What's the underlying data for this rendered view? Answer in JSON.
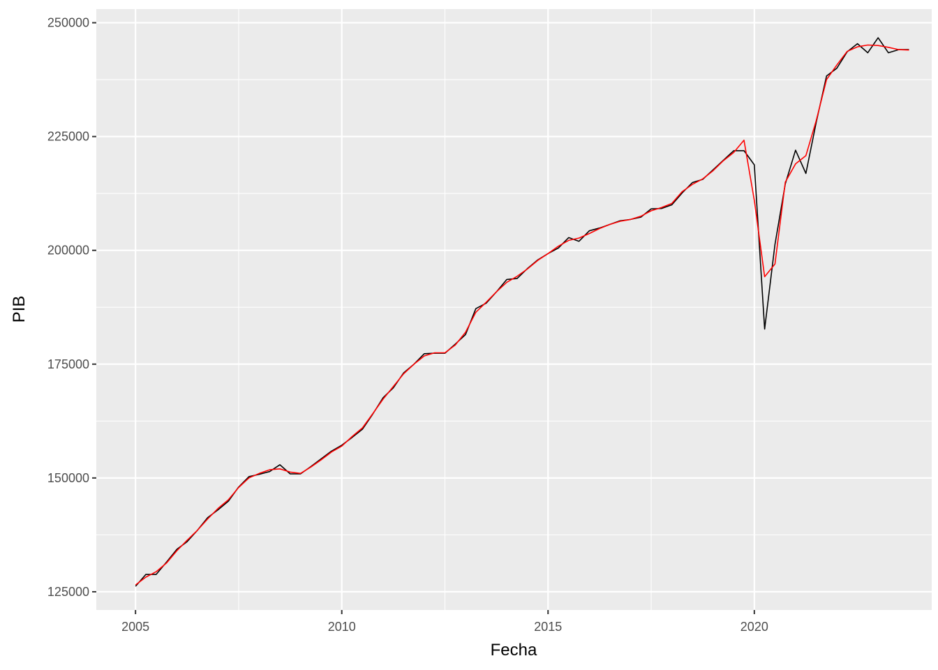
{
  "chart_data": {
    "type": "line",
    "title": "",
    "xlabel": "Fecha",
    "ylabel": "PIB",
    "xlim": [
      2004.05,
      2024.3
    ],
    "ylim": [
      121000,
      253000
    ],
    "x_ticks": [
      2005,
      2010,
      2015,
      2020
    ],
    "x_tick_labels": [
      "2005",
      "2010",
      "2015",
      "2020"
    ],
    "y_ticks": [
      125000,
      150000,
      175000,
      200000,
      225000,
      250000
    ],
    "y_tick_labels": [
      "125000",
      "150000",
      "175000",
      "200000",
      "225000",
      "250000"
    ],
    "grid": true,
    "legend": "none",
    "panel_background": "#ebebeb",
    "grid_color": "#ffffff",
    "series": [
      {
        "color": "#000000",
        "x": [
          2005.0,
          2005.25,
          2005.5,
          2005.75,
          2006.0,
          2006.25,
          2006.5,
          2006.75,
          2007.0,
          2007.25,
          2007.5,
          2007.75,
          2008.0,
          2008.25,
          2008.5,
          2008.75,
          2009.0,
          2009.25,
          2009.5,
          2009.75,
          2010.0,
          2010.25,
          2010.5,
          2010.75,
          2011.0,
          2011.25,
          2011.5,
          2011.75,
          2012.0,
          2012.25,
          2012.5,
          2012.75,
          2013.0,
          2013.25,
          2013.5,
          2013.75,
          2014.0,
          2014.25,
          2014.5,
          2014.75,
          2015.0,
          2015.25,
          2015.5,
          2015.75,
          2016.0,
          2016.25,
          2016.5,
          2016.75,
          2017.0,
          2017.25,
          2017.5,
          2017.75,
          2018.0,
          2018.25,
          2018.5,
          2018.75,
          2019.0,
          2019.25,
          2019.5,
          2019.75,
          2020.0,
          2020.25,
          2020.5,
          2020.75,
          2021.0,
          2021.25,
          2021.5,
          2021.75,
          2022.0,
          2022.25,
          2022.5,
          2022.75,
          2023.0,
          2023.25,
          2023.5,
          2023.75
        ],
        "values": [
          126200,
          128800,
          128800,
          131500,
          134300,
          136000,
          138500,
          141300,
          143000,
          144900,
          148000,
          150300,
          150800,
          151400,
          152900,
          150900,
          150900,
          152500,
          154200,
          155900,
          157200,
          158900,
          160700,
          164000,
          167600,
          169800,
          173100,
          175000,
          177300,
          177400,
          177400,
          179400,
          181500,
          187200,
          188400,
          190900,
          193600,
          193800,
          196000,
          197900,
          199300,
          200500,
          202800,
          202000,
          204300,
          204900,
          205700,
          206500,
          206800,
          207300,
          209100,
          209200,
          210000,
          212600,
          214900,
          215600,
          217700,
          219800,
          221900,
          221900,
          218800,
          182700,
          201300,
          214600,
          222000,
          216900,
          228100,
          238300,
          240000,
          243600,
          245400,
          243400,
          246700,
          243400,
          244100,
          244100
        ]
      },
      {
        "color": "#ff0000",
        "x": [
          2005.0,
          2005.25,
          2005.5,
          2005.75,
          2006.0,
          2006.25,
          2006.5,
          2006.75,
          2007.0,
          2007.25,
          2007.5,
          2007.75,
          2008.0,
          2008.25,
          2008.5,
          2008.75,
          2009.0,
          2009.25,
          2009.5,
          2009.75,
          2010.0,
          2010.25,
          2010.5,
          2010.75,
          2011.0,
          2011.25,
          2011.5,
          2011.75,
          2012.0,
          2012.25,
          2012.5,
          2012.75,
          2013.0,
          2013.25,
          2013.5,
          2013.75,
          2014.0,
          2014.25,
          2014.5,
          2014.75,
          2015.0,
          2015.25,
          2015.5,
          2015.75,
          2016.0,
          2016.25,
          2016.5,
          2016.75,
          2017.0,
          2017.25,
          2017.5,
          2017.75,
          2018.0,
          2018.25,
          2018.5,
          2018.75,
          2019.0,
          2019.25,
          2019.5,
          2019.75,
          2020.0,
          2020.25,
          2020.5,
          2020.75,
          2021.0,
          2021.25,
          2021.5,
          2021.75,
          2022.0,
          2022.25,
          2022.5,
          2022.75,
          2023.0,
          2023.25,
          2023.5,
          2023.75
        ],
        "values": [
          126500,
          128200,
          129400,
          131300,
          134000,
          136300,
          138500,
          141000,
          143300,
          145200,
          147900,
          150000,
          151000,
          151800,
          152000,
          151300,
          151000,
          152400,
          154000,
          155700,
          157000,
          159100,
          161000,
          164100,
          167300,
          170100,
          172900,
          175000,
          176800,
          177500,
          177500,
          179200,
          182000,
          186400,
          188600,
          190900,
          193000,
          194300,
          195900,
          197800,
          199300,
          200900,
          202200,
          202700,
          203700,
          204800,
          205700,
          206400,
          206800,
          207500,
          208700,
          209400,
          210300,
          212900,
          214500,
          215700,
          217500,
          219700,
          221500,
          224200,
          211000,
          194200,
          197000,
          215000,
          219000,
          220800,
          228500,
          237500,
          240700,
          243700,
          244700,
          245100,
          245000,
          244600,
          244100,
          244000
        ]
      }
    ]
  }
}
